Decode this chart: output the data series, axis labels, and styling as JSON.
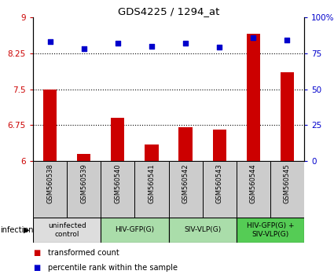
{
  "title": "GDS4225 / 1294_at",
  "samples": [
    "GSM560538",
    "GSM560539",
    "GSM560540",
    "GSM560541",
    "GSM560542",
    "GSM560543",
    "GSM560544",
    "GSM560545"
  ],
  "bar_values": [
    7.5,
    6.15,
    6.9,
    6.35,
    6.7,
    6.65,
    8.65,
    7.85
  ],
  "dot_values": [
    83,
    78,
    82,
    80,
    82,
    79,
    86,
    84
  ],
  "ylim_left": [
    6,
    9
  ],
  "ylim_right": [
    0,
    100
  ],
  "yticks_left": [
    6,
    6.75,
    7.5,
    8.25,
    9
  ],
  "yticks_right": [
    0,
    25,
    50,
    75,
    100
  ],
  "ytick_labels_left": [
    "6",
    "6.75",
    "7.5",
    "8.25",
    "9"
  ],
  "ytick_labels_right": [
    "0",
    "25",
    "50",
    "75",
    "100%"
  ],
  "hlines": [
    6.75,
    7.5,
    8.25
  ],
  "bar_color": "#cc0000",
  "dot_color": "#0000cc",
  "bar_bottom": 6,
  "groups": [
    {
      "label": "uninfected\ncontrol",
      "start": 0,
      "end": 2,
      "color": "#dddddd"
    },
    {
      "label": "HIV-GFP(G)",
      "start": 2,
      "end": 4,
      "color": "#aaddaa"
    },
    {
      "label": "SIV-VLP(G)",
      "start": 4,
      "end": 6,
      "color": "#aaddaa"
    },
    {
      "label": "HIV-GFP(G) +\nSIV-VLP(G)",
      "start": 6,
      "end": 8,
      "color": "#55cc55"
    }
  ],
  "legend_bar_label": "transformed count",
  "legend_dot_label": "percentile rank within the sample",
  "infection_label": "infection",
  "sample_box_color": "#cccccc",
  "ylabel_left_color": "#cc0000",
  "ylabel_right_color": "#0000cc"
}
